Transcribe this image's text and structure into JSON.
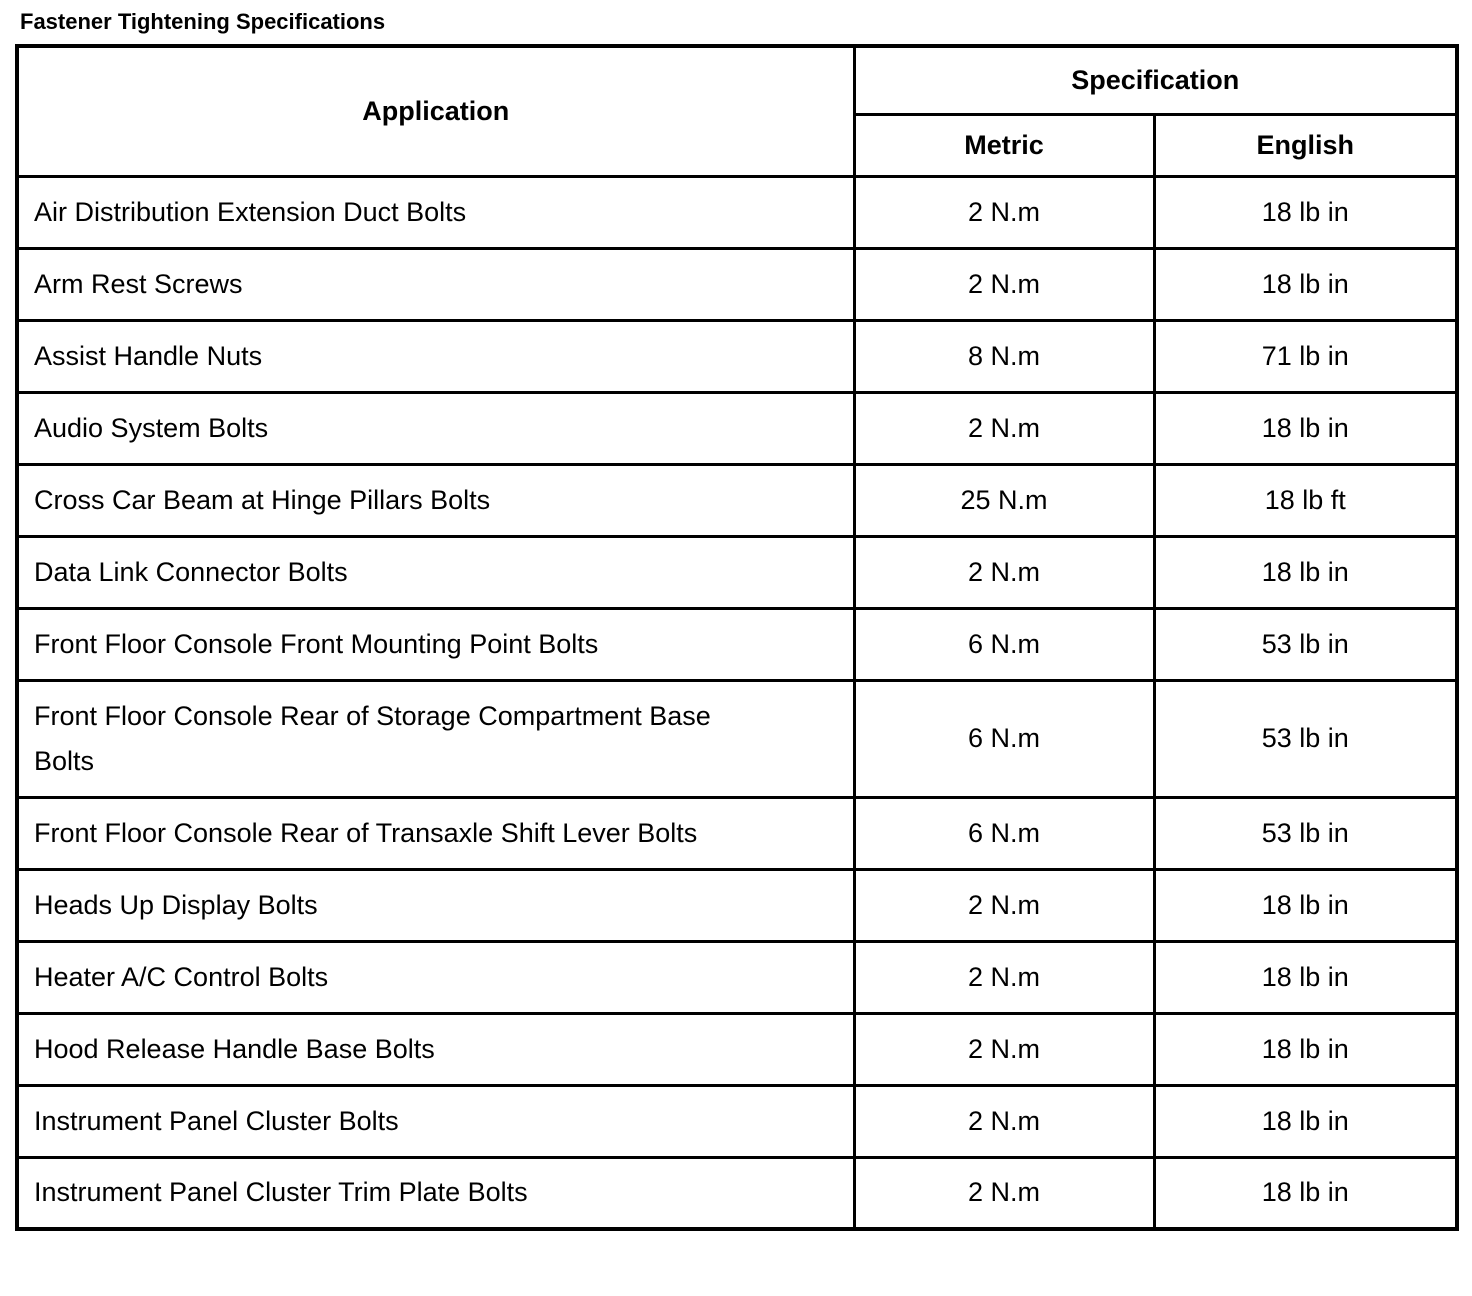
{
  "title": "Fastener Tightening Specifications",
  "colors": {
    "background": "#ffffff",
    "border": "#000000",
    "text": "#000000"
  },
  "table": {
    "headers": {
      "application": "Application",
      "specification": "Specification",
      "metric": "Metric",
      "english": "English"
    },
    "rows": [
      {
        "application": "Air Distribution Extension Duct Bolts",
        "metric": "2 N.m",
        "english": "18 lb in"
      },
      {
        "application": "Arm Rest Screws",
        "metric": "2 N.m",
        "english": "18 lb in"
      },
      {
        "application": "Assist Handle Nuts",
        "metric": "8 N.m",
        "english": "71 lb in"
      },
      {
        "application": "Audio System Bolts",
        "metric": "2 N.m",
        "english": "18 lb in"
      },
      {
        "application": "Cross Car Beam at Hinge Pillars Bolts",
        "metric": "25 N.m",
        "english": "18 lb ft"
      },
      {
        "application": "Data Link Connector Bolts",
        "metric": "2 N.m",
        "english": "18 lb in"
      },
      {
        "application": "Front Floor Console Front Mounting Point Bolts",
        "metric": "6 N.m",
        "english": "53 lb in"
      },
      {
        "application": "Front Floor Console Rear of Storage Compartment Base Bolts",
        "metric": "6 N.m",
        "english": "53 lb in"
      },
      {
        "application": "Front Floor Console Rear of Transaxle Shift Lever Bolts",
        "metric": "6 N.m",
        "english": "53 lb in"
      },
      {
        "application": "Heads Up Display Bolts",
        "metric": "2 N.m",
        "english": "18 lb in"
      },
      {
        "application": "Heater A/C Control Bolts",
        "metric": "2 N.m",
        "english": "18 lb in"
      },
      {
        "application": "Hood Release Handle Base Bolts",
        "metric": "2 N.m",
        "english": "18 lb in"
      },
      {
        "application": "Instrument Panel Cluster Bolts",
        "metric": "2 N.m",
        "english": "18 lb in"
      },
      {
        "application": "Instrument Panel Cluster Trim Plate Bolts",
        "metric": "2 N.m",
        "english": "18 lb in"
      }
    ]
  }
}
